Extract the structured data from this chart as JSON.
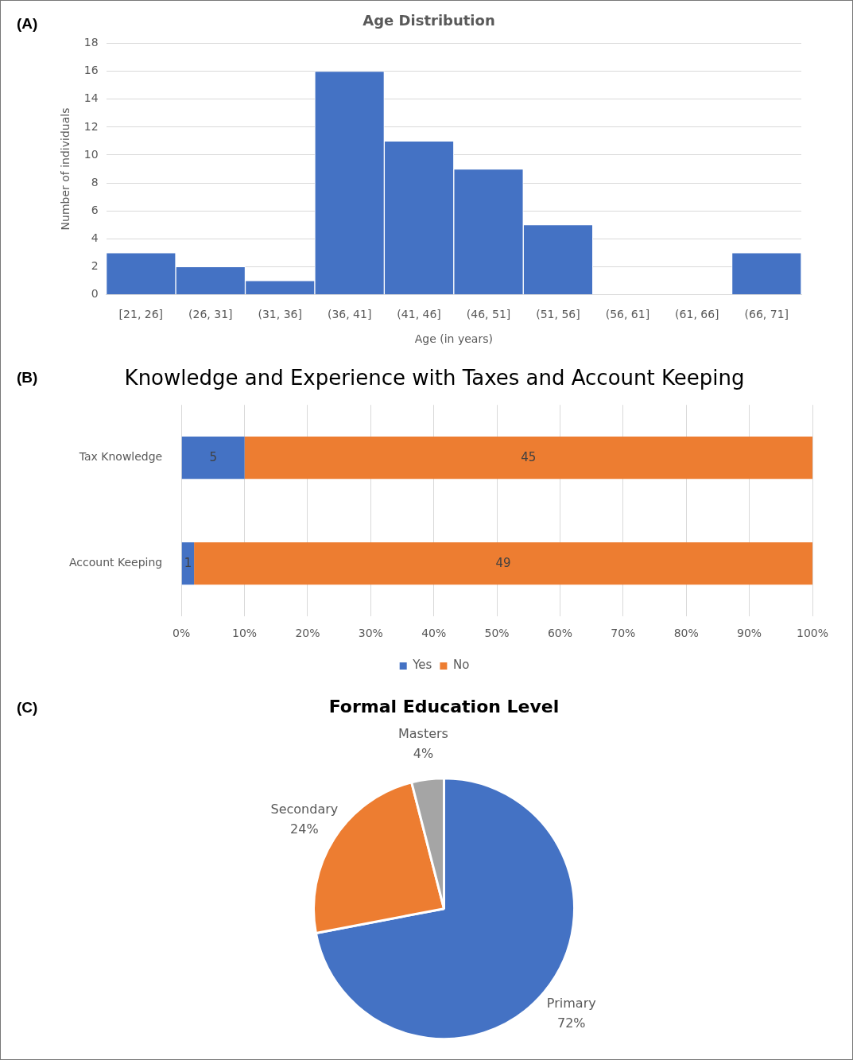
{
  "chart_data": [
    {
      "type": "bar",
      "title": "Age Distribution",
      "xlabel": "Age (in years)",
      "ylabel": "Number of individuals",
      "annotations": [
        "(A)"
      ],
      "categories": [
        "[21, 26]",
        "(26, 31]",
        "(31, 36]",
        "(36, 41]",
        "(41, 46]",
        "(46, 51]",
        "(51, 56]",
        "(56, 61]",
        "(61, 66]",
        "(66, 71]"
      ],
      "values": [
        3,
        2,
        1,
        16,
        11,
        9,
        5,
        0,
        0,
        3
      ],
      "color": "#4472c4",
      "ylim": [
        0,
        18
      ],
      "yticks": [
        0,
        2,
        4,
        6,
        8,
        10,
        12,
        14,
        16,
        18
      ],
      "grid": "y",
      "legend": false
    },
    {
      "type": "bar",
      "title": "Knowledge and Experience with Taxes and Account Keeping",
      "annotations": [
        "(B)",
        "5",
        "1",
        "45",
        "49"
      ],
      "orientation": "horizontal",
      "stacked": true,
      "categories": [
        "Tax Knowledge",
        "Account Keeping"
      ],
      "series": [
        {
          "name": "Yes",
          "color": "#4472c4",
          "values": [
            10,
            2
          ]
        },
        {
          "name": "No",
          "color": "#ed7d31",
          "values": [
            90,
            98
          ]
        }
      ],
      "xlim": [
        0,
        100
      ],
      "xticks": [
        {
          "value": 0,
          "label": "0%"
        },
        {
          "value": 10,
          "label": "10%"
        },
        {
          "value": 20,
          "label": "20%"
        },
        {
          "value": 30,
          "label": "30%"
        },
        {
          "value": 40,
          "label": "40%"
        },
        {
          "value": 50,
          "label": "50%"
        },
        {
          "value": 60,
          "label": "60%"
        },
        {
          "value": 70,
          "label": "70%"
        },
        {
          "value": 80,
          "label": "80%"
        },
        {
          "value": 90,
          "label": "90%"
        },
        {
          "value": 100,
          "label": "100%"
        }
      ],
      "grid": "x",
      "legend": "bottom"
    },
    {
      "type": "pie",
      "title": "Formal Education Level",
      "annotations": [
        "(C)"
      ],
      "categories": [
        "Primary",
        "Secondary",
        "Masters"
      ],
      "values": [
        72,
        24,
        4
      ],
      "colors": [
        "#4472c4",
        "#ed7d31",
        "#a5a5a5"
      ],
      "value_labels": [
        "72%",
        "24%",
        "4%"
      ],
      "legend": false
    }
  ]
}
